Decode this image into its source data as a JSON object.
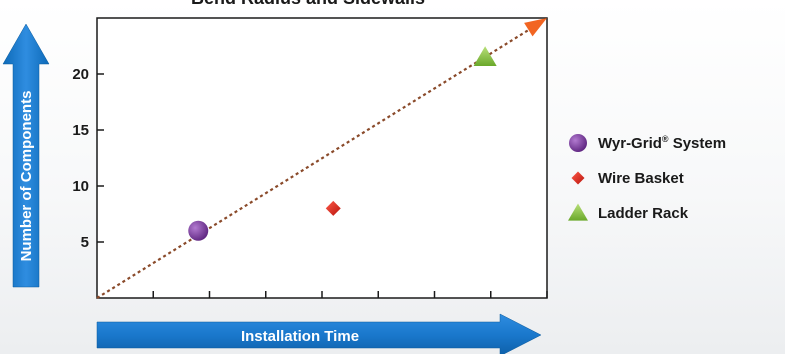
{
  "chart_data": {
    "type": "scatter",
    "title": "Bend Radius and Sidewalls",
    "xlabel": "Installation Time",
    "ylabel": "Number of Components",
    "xlim": [
      0,
      8
    ],
    "ylim": [
      0,
      25
    ],
    "yticks": [
      5,
      10,
      15,
      20
    ],
    "yticklabels": [
      "5",
      "10",
      "15",
      "20"
    ],
    "xticks": [
      1,
      2,
      3,
      4,
      5,
      6,
      7,
      8
    ],
    "grid": false,
    "legend_position": "right",
    "series": [
      {
        "name": "Wyr-Grid® System",
        "marker": "circle",
        "color": "#7b3f98",
        "x": [
          1.8
        ],
        "y": [
          6
        ]
      },
      {
        "name": "Wire Basket",
        "marker": "diamond",
        "color": "#e0251b",
        "x": [
          4.2
        ],
        "y": [
          8
        ]
      },
      {
        "name": "Ladder Rack",
        "marker": "triangle",
        "color": "#8cc63f",
        "x": [
          6.9
        ],
        "y": [
          21.5
        ]
      }
    ],
    "trendline": {
      "style": "dotted",
      "color": "#8a4a2a",
      "arrow_color": "#f26522",
      "x": [
        0,
        8
      ],
      "y": [
        0,
        25
      ]
    }
  }
}
